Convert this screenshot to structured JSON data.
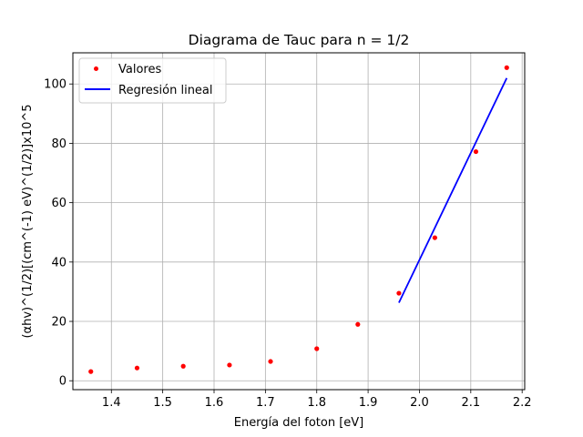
{
  "chart_data": {
    "type": "scatter",
    "title": "Diagrama de Tauc para n = 1/2",
    "xlabel": "Energía del foton [eV]",
    "ylabel": "(αhv)^(1/2)[(cm^(-1) eV)^(1/2)]x10^5",
    "xlim": [
      1.325,
      2.205
    ],
    "ylim": [
      -3,
      110.5
    ],
    "xticks": [
      1.4,
      1.5,
      1.6,
      1.7,
      1.8,
      1.9,
      2.0,
      2.1,
      2.2
    ],
    "xtick_labels": [
      "1.4",
      "1.5",
      "1.6",
      "1.7",
      "1.8",
      "1.9",
      "2.0",
      "2.1",
      "2.2"
    ],
    "yticks": [
      0,
      20,
      40,
      60,
      80,
      100
    ],
    "ytick_labels": [
      "0",
      "20",
      "40",
      "60",
      "80",
      "100"
    ],
    "grid": true,
    "legend_position": "top-left",
    "series": [
      {
        "name": "Valores",
        "kind": "scatter",
        "color": "#ff0000",
        "x": [
          1.36,
          1.45,
          1.54,
          1.63,
          1.71,
          1.8,
          1.88,
          1.96,
          2.03,
          2.11,
          2.17
        ],
        "y": [
          3.1,
          4.3,
          4.9,
          5.3,
          6.5,
          10.8,
          19.0,
          29.5,
          48.2,
          77.2,
          105.5
        ]
      },
      {
        "name": "Regresión lineal",
        "kind": "line",
        "color": "#0000ff",
        "x": [
          1.96,
          2.17
        ],
        "y": [
          26.3,
          102.0
        ]
      }
    ]
  }
}
